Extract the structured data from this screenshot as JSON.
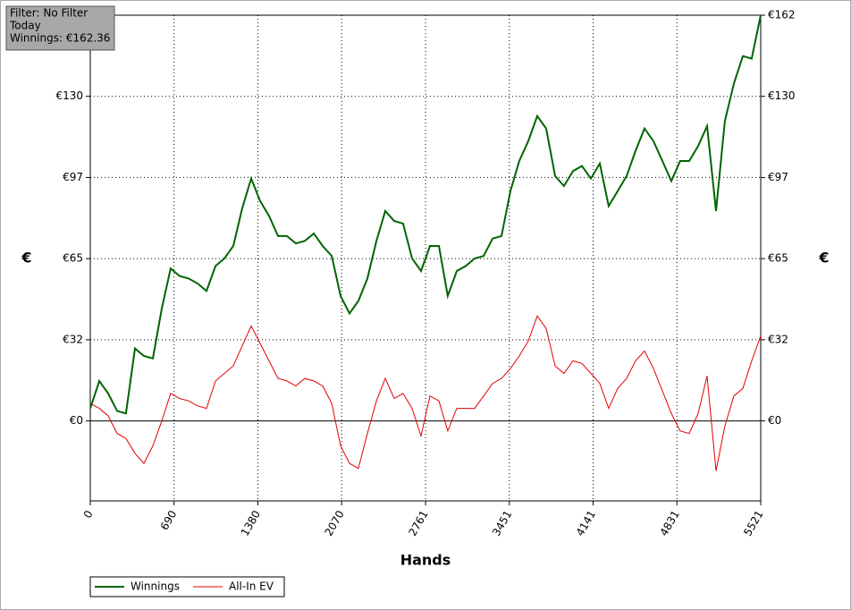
{
  "chart_data": {
    "type": "line",
    "annotations": [
      "Filter: No Filter",
      "Today",
      "Winnings: €162.36"
    ],
    "xlabel": "Hands",
    "ylabel": "€",
    "x": [
      0,
      74,
      147,
      221,
      294,
      368,
      442,
      515,
      589,
      662,
      736,
      810,
      883,
      957,
      1031,
      1104,
      1178,
      1251,
      1325,
      1399,
      1472,
      1546,
      1619,
      1693,
      1767,
      1840,
      1914,
      1988,
      2061,
      2135,
      2208,
      2282,
      2356,
      2429,
      2503,
      2576,
      2650,
      2724,
      2797,
      2871,
      2944,
      3018,
      3092,
      3165,
      3239,
      3313,
      3386,
      3460,
      3533,
      3607,
      3681,
      3754,
      3828,
      3901,
      3975,
      4049,
      4122,
      4196,
      4269,
      4343,
      4417,
      4490,
      4564,
      4638,
      4711,
      4785,
      4858,
      4932,
      5006,
      5079,
      5153,
      5226,
      5300,
      5374,
      5447,
      5521
    ],
    "series": [
      {
        "name": "Winnings",
        "color": "#006400",
        "values": [
          5,
          16,
          11,
          4,
          3,
          29,
          26,
          25,
          45,
          61,
          58,
          57,
          55,
          52,
          62,
          65,
          70,
          85,
          97,
          88,
          82,
          74,
          74,
          71,
          72,
          75,
          70,
          66,
          50,
          43,
          48,
          57,
          72,
          84,
          80,
          79,
          65,
          60,
          70,
          70,
          50,
          60,
          62,
          65,
          66,
          73,
          74,
          92,
          104,
          112,
          122,
          117,
          98,
          94,
          100,
          102,
          97,
          103,
          86,
          92,
          98,
          108,
          117,
          112,
          104,
          96,
          104,
          104,
          110,
          118,
          84,
          120,
          135,
          146,
          145,
          162.36
        ]
      },
      {
        "name": "All-In EV",
        "color": "#e00000",
        "values": [
          7,
          5,
          2,
          -5,
          -7,
          -13,
          -17,
          -10,
          0,
          11,
          9,
          8,
          6,
          5,
          16,
          19,
          22,
          30,
          38,
          31,
          24,
          17,
          16,
          14,
          17,
          16,
          14,
          7,
          -10,
          -17,
          -19,
          -5,
          8,
          17,
          9,
          11,
          5,
          -6,
          10,
          8,
          -4,
          5,
          5,
          5,
          10,
          15,
          17,
          21,
          26,
          32,
          42,
          37,
          22,
          19,
          24,
          23,
          19,
          15,
          5,
          13,
          17,
          24,
          28,
          21,
          12,
          3,
          -4,
          -5,
          3,
          18,
          -20,
          -2,
          10,
          13,
          24,
          34
        ]
      }
    ],
    "xlim": [
      0,
      5521
    ],
    "xticks": [
      0,
      690,
      1380,
      2070,
      2761,
      3451,
      4141,
      4831,
      5521
    ],
    "ylim": [
      -32,
      162.36
    ],
    "yticks": [
      {
        "value": 0,
        "label": "€0"
      },
      {
        "value": 32.47,
        "label": "€32"
      },
      {
        "value": 64.94,
        "label": "€65"
      },
      {
        "value": 97.42,
        "label": "€97"
      },
      {
        "value": 129.89,
        "label": "€130"
      },
      {
        "value": 162.36,
        "label": "€162"
      }
    ],
    "grid": true,
    "legend": "bottom-left"
  }
}
